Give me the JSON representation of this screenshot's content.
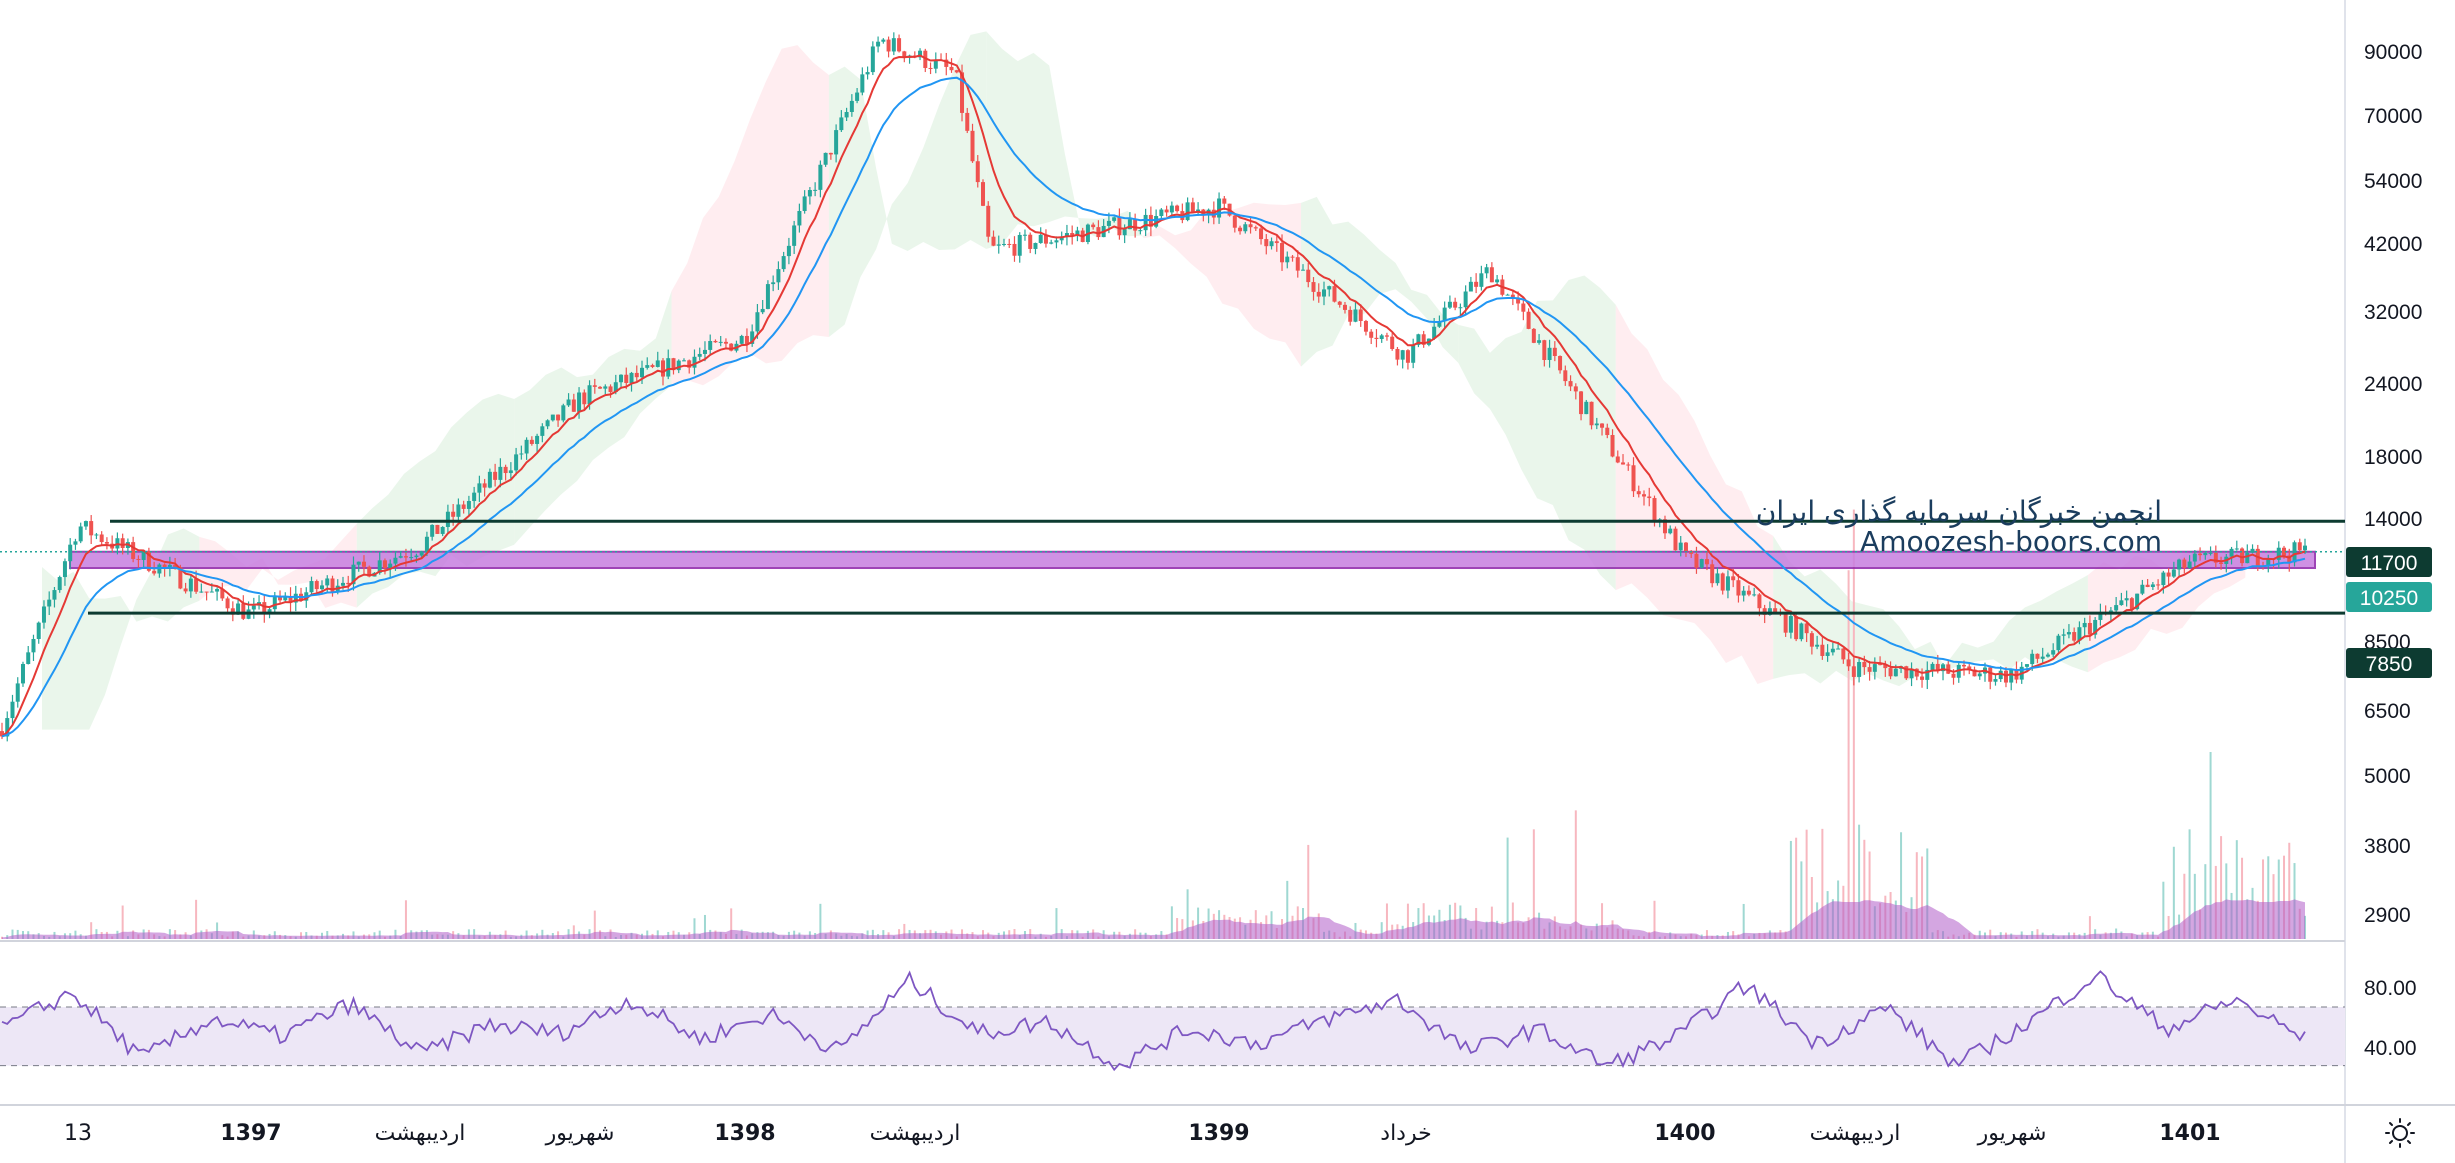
{
  "watermark": {
    "line1": "انجمن خبرگان سرمایه گذاری ایران",
    "line2": "Amoozesh-boors.com"
  },
  "colors": {
    "up": "#26a69a",
    "down": "#ef5350",
    "ema_fast": "#e53935",
    "ema_slow": "#2196f3",
    "level_lines": "#0d3b31",
    "zone_fill": "#c77ee0",
    "zone_border": "#8e24aa",
    "last_price_badge": "#26a69a",
    "rsi_line": "#7e57c2",
    "rsi_band": "#ede7f6",
    "volume": "#b05cc8",
    "cloud_green": "#e8f5e9",
    "cloud_red": "#ffebee"
  },
  "icons": {
    "settings": "sun-icon"
  },
  "chart_data": {
    "type": "candlestick",
    "scale": "log",
    "price_axis": {
      "ticks": [
        "90000",
        "70000",
        "54000",
        "42000",
        "32000",
        "24000",
        "18000",
        "14000",
        "8500",
        "6500",
        "5000",
        "3800",
        "2900"
      ],
      "level_badges": [
        "11700",
        "7850"
      ],
      "last_price": "10250"
    },
    "levels": [
      11700,
      7850
    ],
    "zone": [
      9550,
      10250
    ],
    "time_axis": {
      "labels": [
        "13",
        "1397",
        "اردیبهشت",
        "شهریور",
        "1398",
        "اردیبهشت",
        "1399",
        "خرداد",
        "1400",
        "اردیبهشت",
        "شهریور",
        "1401"
      ],
      "bold": [
        false,
        true,
        false,
        false,
        true,
        false,
        true,
        false,
        true,
        false,
        false,
        true
      ]
    },
    "approx_close_path": [
      {
        "t": "start",
        "close": 4700
      },
      {
        "t": "13",
        "close": 11500
      },
      {
        "t": "1397",
        "close": 7800
      },
      {
        "t": "اردیبهشت",
        "close": 10500
      },
      {
        "t": "شهریور",
        "close": 20000
      },
      {
        "t": "1398",
        "close": 26000
      },
      {
        "t": "peak",
        "close": 95000
      },
      {
        "t": "اردیبهشت",
        "close": 82000
      },
      {
        "t": "drop",
        "close": 38000
      },
      {
        "t": "1399",
        "close": 46000
      },
      {
        "t": "خرداد",
        "close": 24000
      },
      {
        "t": "local high",
        "close": 35000
      },
      {
        "t": "1400",
        "close": 10000
      },
      {
        "t": "اردیبهشت",
        "close": 6200
      },
      {
        "t": "شهریور",
        "close": 6000
      },
      {
        "t": "1401",
        "close": 9800
      },
      {
        "t": "last",
        "close": 10250
      }
    ],
    "rsi": {
      "ticks": [
        "80.00",
        "40.00"
      ],
      "upper_band": 70,
      "lower_band": 30,
      "approx_values": [
        55,
        80,
        35,
        62,
        50,
        72,
        38,
        58,
        52,
        75,
        48,
        65,
        40,
        88,
        52,
        60,
        30,
        55,
        45,
        62,
        75,
        40,
        55,
        30,
        50,
        85,
        45,
        70,
        30,
        58,
        92,
        55,
        75,
        48
      ]
    },
    "volume": {
      "note": "histogram with moving-average area"
    }
  }
}
